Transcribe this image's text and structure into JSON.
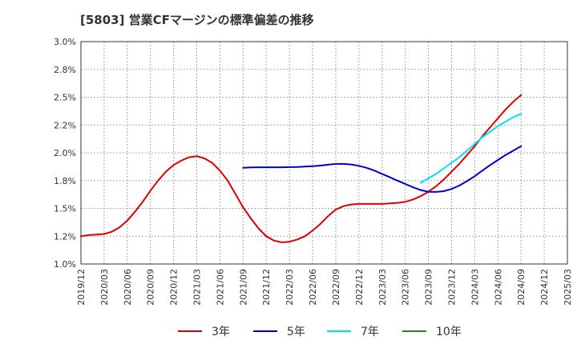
{
  "chart_data": {
    "type": "line",
    "title": "[5803]  営業CFマージンの標準偏差の推移",
    "xlabel": "",
    "ylabel": "",
    "ylim": [
      1.0,
      3.0
    ],
    "yticks": [
      "1.0%",
      "1.2%",
      "1.5%",
      "1.8%",
      "2.0%",
      "2.2%",
      "2.5%",
      "2.8%",
      "3.0%"
    ],
    "yticks_values": [
      1.0,
      1.25,
      1.5,
      1.75,
      2.0,
      2.25,
      2.5,
      2.75,
      3.0
    ],
    "xticks": [
      "2019/12",
      "2020/03",
      "2020/06",
      "2020/09",
      "2020/12",
      "2021/03",
      "2021/06",
      "2021/09",
      "2021/12",
      "2022/03",
      "2022/06",
      "2022/09",
      "2022/12",
      "2023/03",
      "2023/06",
      "2023/09",
      "2023/12",
      "2024/03",
      "2024/06",
      "2024/09",
      "2024/12",
      "2025/03"
    ],
    "grid": true,
    "legend_placement": "bottom",
    "series": [
      {
        "name": "3年",
        "color": "#dd0000",
        "x": [
          "2019/12",
          "2020/01",
          "2020/02",
          "2020/03",
          "2020/04",
          "2020/05",
          "2020/06",
          "2020/07",
          "2020/08",
          "2020/09",
          "2020/10",
          "2020/11",
          "2020/12",
          "2021/01",
          "2021/02",
          "2021/03",
          "2021/04",
          "2021/05",
          "2021/06",
          "2021/07",
          "2021/08",
          "2021/09",
          "2021/10",
          "2021/11",
          "2021/12",
          "2022/01",
          "2022/02",
          "2022/03",
          "2022/04",
          "2022/05",
          "2022/06",
          "2022/07",
          "2022/08",
          "2022/09",
          "2022/10",
          "2022/11",
          "2022/12",
          "2023/01",
          "2023/02",
          "2023/03",
          "2023/04",
          "2023/05",
          "2023/06",
          "2023/07",
          "2023/08",
          "2023/09",
          "2023/10",
          "2023/11",
          "2023/12",
          "2024/01",
          "2024/02",
          "2024/03",
          "2024/04",
          "2024/05",
          "2024/06",
          "2024/07",
          "2024/08",
          "2024/09"
        ],
        "values": [
          1.25,
          1.26,
          1.265,
          1.27,
          1.29,
          1.33,
          1.39,
          1.47,
          1.56,
          1.66,
          1.75,
          1.83,
          1.89,
          1.93,
          1.96,
          1.97,
          1.95,
          1.91,
          1.84,
          1.75,
          1.63,
          1.51,
          1.41,
          1.32,
          1.25,
          1.21,
          1.195,
          1.2,
          1.22,
          1.25,
          1.3,
          1.36,
          1.43,
          1.49,
          1.52,
          1.535,
          1.54,
          1.54,
          1.54,
          1.54,
          1.545,
          1.55,
          1.56,
          1.58,
          1.61,
          1.65,
          1.7,
          1.76,
          1.83,
          1.9,
          1.98,
          2.06,
          2.15,
          2.23,
          2.31,
          2.39,
          2.46,
          2.52
        ]
      },
      {
        "name": "5年",
        "color": "#0000cc",
        "x": [
          "2021/09",
          "2021/10",
          "2021/11",
          "2021/12",
          "2022/01",
          "2022/02",
          "2022/03",
          "2022/04",
          "2022/05",
          "2022/06",
          "2022/07",
          "2022/08",
          "2022/09",
          "2022/10",
          "2022/11",
          "2022/12",
          "2023/01",
          "2023/02",
          "2023/03",
          "2023/04",
          "2023/05",
          "2023/06",
          "2023/07",
          "2023/08",
          "2023/09",
          "2023/10",
          "2023/11",
          "2023/12",
          "2024/01",
          "2024/02",
          "2024/03",
          "2024/04",
          "2024/05",
          "2024/06",
          "2024/07",
          "2024/08",
          "2024/09"
        ],
        "values": [
          1.865,
          1.868,
          1.87,
          1.87,
          1.87,
          1.87,
          1.871,
          1.873,
          1.876,
          1.88,
          1.885,
          1.893,
          1.9,
          1.9,
          1.895,
          1.883,
          1.865,
          1.84,
          1.81,
          1.78,
          1.75,
          1.72,
          1.69,
          1.665,
          1.65,
          1.648,
          1.655,
          1.675,
          1.705,
          1.745,
          1.79,
          1.84,
          1.89,
          1.935,
          1.98,
          2.02,
          2.06
        ]
      },
      {
        "name": "7年",
        "color": "#00e0f0",
        "x": [
          "2023/08",
          "2023/09",
          "2023/10",
          "2023/11",
          "2023/12",
          "2024/01",
          "2024/02",
          "2024/03",
          "2024/04",
          "2024/05",
          "2024/06",
          "2024/07",
          "2024/08",
          "2024/09"
        ],
        "values": [
          1.73,
          1.77,
          1.81,
          1.86,
          1.91,
          1.96,
          2.02,
          2.08,
          2.14,
          2.19,
          2.24,
          2.28,
          2.32,
          2.35
        ]
      },
      {
        "name": "10年",
        "color": "#228822",
        "x": [],
        "values": []
      }
    ]
  }
}
